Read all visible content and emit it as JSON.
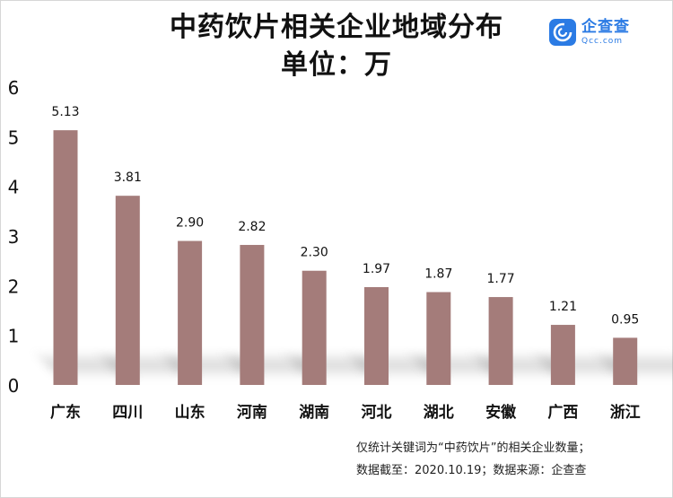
{
  "title": {
    "line1": "中药饮片相关企业地域分布",
    "line2": "单位：万"
  },
  "logo": {
    "name_cn": "企查查",
    "name_en": "Qcc.com",
    "icon": "qcc-logo-icon",
    "color": "#2b7be4"
  },
  "chart_data": {
    "type": "bar",
    "title": "中药饮片相关企业地域分布",
    "subtitle": "单位：万",
    "categories": [
      "广东",
      "四川",
      "山东",
      "河南",
      "湖南",
      "河北",
      "湖北",
      "安徽",
      "广西",
      "浙江"
    ],
    "values": [
      5.13,
      3.81,
      2.9,
      2.82,
      2.3,
      1.97,
      1.87,
      1.77,
      1.21,
      0.95
    ],
    "value_labels": [
      "5.13",
      "3.81",
      "2.90",
      "2.82",
      "2.30",
      "1.97",
      "1.87",
      "1.77",
      "1.21",
      "0.95"
    ],
    "yticks": [
      0,
      1,
      2,
      3,
      4,
      5,
      6
    ],
    "ylim": [
      0,
      6
    ],
    "grid": false,
    "bar_color": "#a47c7a"
  },
  "footnote": {
    "line1": "仅统计关键词为“中药饮片”的相关企业数量；",
    "line2": "数据截至：2020.10.19；数据来源：企查查"
  }
}
